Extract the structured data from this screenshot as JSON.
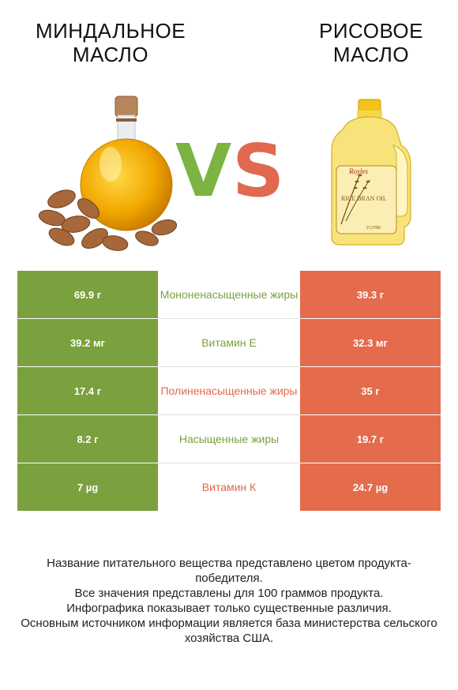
{
  "header": {
    "left_title": "Миндальное\nмасло",
    "right_title": "Рисовое\nмасло",
    "vs_v": "V",
    "vs_s": "S"
  },
  "images": {
    "left": "almond-oil-bottle-with-almonds",
    "right": "rice-bran-oil-jug",
    "right_label_brand": "Royles",
    "right_label_text": "RICE BRAN OIL",
    "right_label_volume": "2 LITRE"
  },
  "colors": {
    "left_accent": "#7ba03e",
    "right_accent": "#e46c4d",
    "vs_green": "#7cb342",
    "vs_red": "#e0694f"
  },
  "rows": [
    {
      "left": "69.9 г",
      "name": "Мононенасыщенные жиры",
      "right": "39.3 г",
      "winner": "left"
    },
    {
      "left": "39.2 мг",
      "name": "Витамин E",
      "right": "32.3 мг",
      "winner": "left"
    },
    {
      "left": "17.4 г",
      "name": "Полиненасыщенные жиры",
      "right": "35 г",
      "winner": "right"
    },
    {
      "left": "8.2 г",
      "name": "Насыщенные жиры",
      "right": "19.7 г",
      "winner": "left"
    },
    {
      "left": "7 µg",
      "name": "Витамин К",
      "right": "24.7 µg",
      "winner": "right"
    }
  ],
  "footer": {
    "line1": "Название питательного вещества представлено цветом продукта-победителя.",
    "line2": "Все значения представлены для 100 граммов продукта.",
    "line3": "Инфографика показывает только существенные различия.",
    "line4": "Основным источником информации является база министерства сельского хозяйства США."
  }
}
